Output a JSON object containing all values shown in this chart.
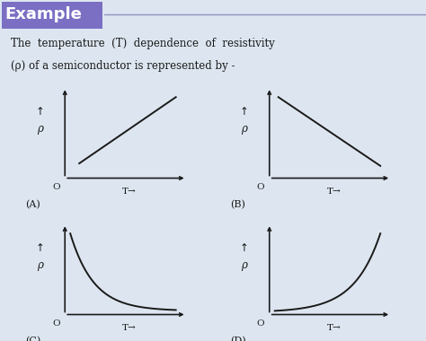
{
  "background_color": "#dde6f0",
  "title_text": "Example",
  "title_bg_color": "#7b6fc4",
  "title_text_color": "#ffffff",
  "description_line1": "The  temperature  (T)  dependence  of  resistivity",
  "description_line2": "(ρ) of a semiconductor is represented by -",
  "curve_color": "#1a1a1a",
  "text_color": "#1a1a1a",
  "panel_bg": "#dde6f0",
  "title_fontsize": 13,
  "desc_fontsize": 8.5,
  "label_fontsize": 8.0,
  "axis_label_fontsize": 7.5,
  "curve_lw": 1.4
}
